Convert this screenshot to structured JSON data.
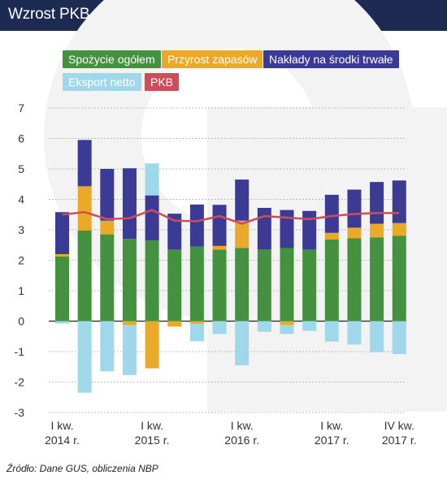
{
  "title": "Wzrost PKB (rok do roku, proc.) – dekompozycja",
  "source": "Źródło: Dane GUS, obliczenia NBP",
  "legend": [
    {
      "label": "Spożycie ogółem",
      "color": "#44913f"
    },
    {
      "label": "Przyrost zapasów",
      "color": "#eaa926"
    },
    {
      "label": "Nakłady na środki trwałe",
      "color": "#3b3b96"
    },
    {
      "label": "Eksport netto",
      "color": "#9fd8ea"
    },
    {
      "label": "PKB",
      "color": "#cd4e5a"
    }
  ],
  "chart_data": {
    "type": "bar",
    "stacked": true,
    "ylim": [
      -3,
      7
    ],
    "yticks": [
      -3,
      -2,
      -1,
      0,
      1,
      2,
      3,
      4,
      5,
      6,
      7
    ],
    "grid": true,
    "legend_position": "top",
    "xtick_labels": [
      {
        "index": 0,
        "line1": "I kw.",
        "line2": "2014 r."
      },
      {
        "index": 4,
        "line1": "I kw.",
        "line2": "2015 r."
      },
      {
        "index": 8,
        "line1": "I kw.",
        "line2": "2016 r."
      },
      {
        "index": 12,
        "line1": "I kw.",
        "line2": "2017 r."
      },
      {
        "index": 15,
        "line1": "IV kw.",
        "line2": "2017 r."
      }
    ],
    "bar_series": [
      {
        "name": "Spożycie ogółem",
        "color": "#44913f",
        "values": [
          2.12,
          2.98,
          2.85,
          2.7,
          2.65,
          2.35,
          2.45,
          2.35,
          2.4,
          2.35,
          2.4,
          2.35,
          2.68,
          2.72,
          2.75,
          2.8
        ]
      },
      {
        "name": "Przyrost zapasów",
        "color": "#eaa926",
        "values": [
          0.08,
          1.45,
          0.45,
          -0.12,
          -1.55,
          -0.18,
          -0.08,
          0.12,
          0.9,
          0.0,
          -0.12,
          0.0,
          0.22,
          0.35,
          0.45,
          0.42
        ]
      },
      {
        "name": "Nakłady na środki trwałe",
        "color": "#3b3b96",
        "values": [
          1.38,
          1.52,
          1.7,
          2.32,
          1.48,
          1.18,
          1.38,
          1.35,
          1.35,
          1.37,
          1.25,
          1.27,
          1.25,
          1.25,
          1.37,
          1.4
        ]
      },
      {
        "name": "Eksport netto",
        "color": "#9fd8ea",
        "values": [
          -0.08,
          -2.35,
          -1.65,
          -1.65,
          1.05,
          0.0,
          -0.58,
          -0.42,
          -1.45,
          -0.35,
          -0.3,
          -0.32,
          -0.67,
          -0.77,
          -1.02,
          -1.08
        ]
      }
    ],
    "line_series": [
      {
        "name": "PKB",
        "color": "#cd4e5a",
        "values": [
          3.5,
          3.58,
          3.35,
          3.38,
          3.65,
          3.3,
          3.28,
          3.45,
          3.2,
          3.45,
          3.4,
          3.35,
          3.45,
          3.52,
          3.55,
          3.55
        ]
      }
    ]
  }
}
